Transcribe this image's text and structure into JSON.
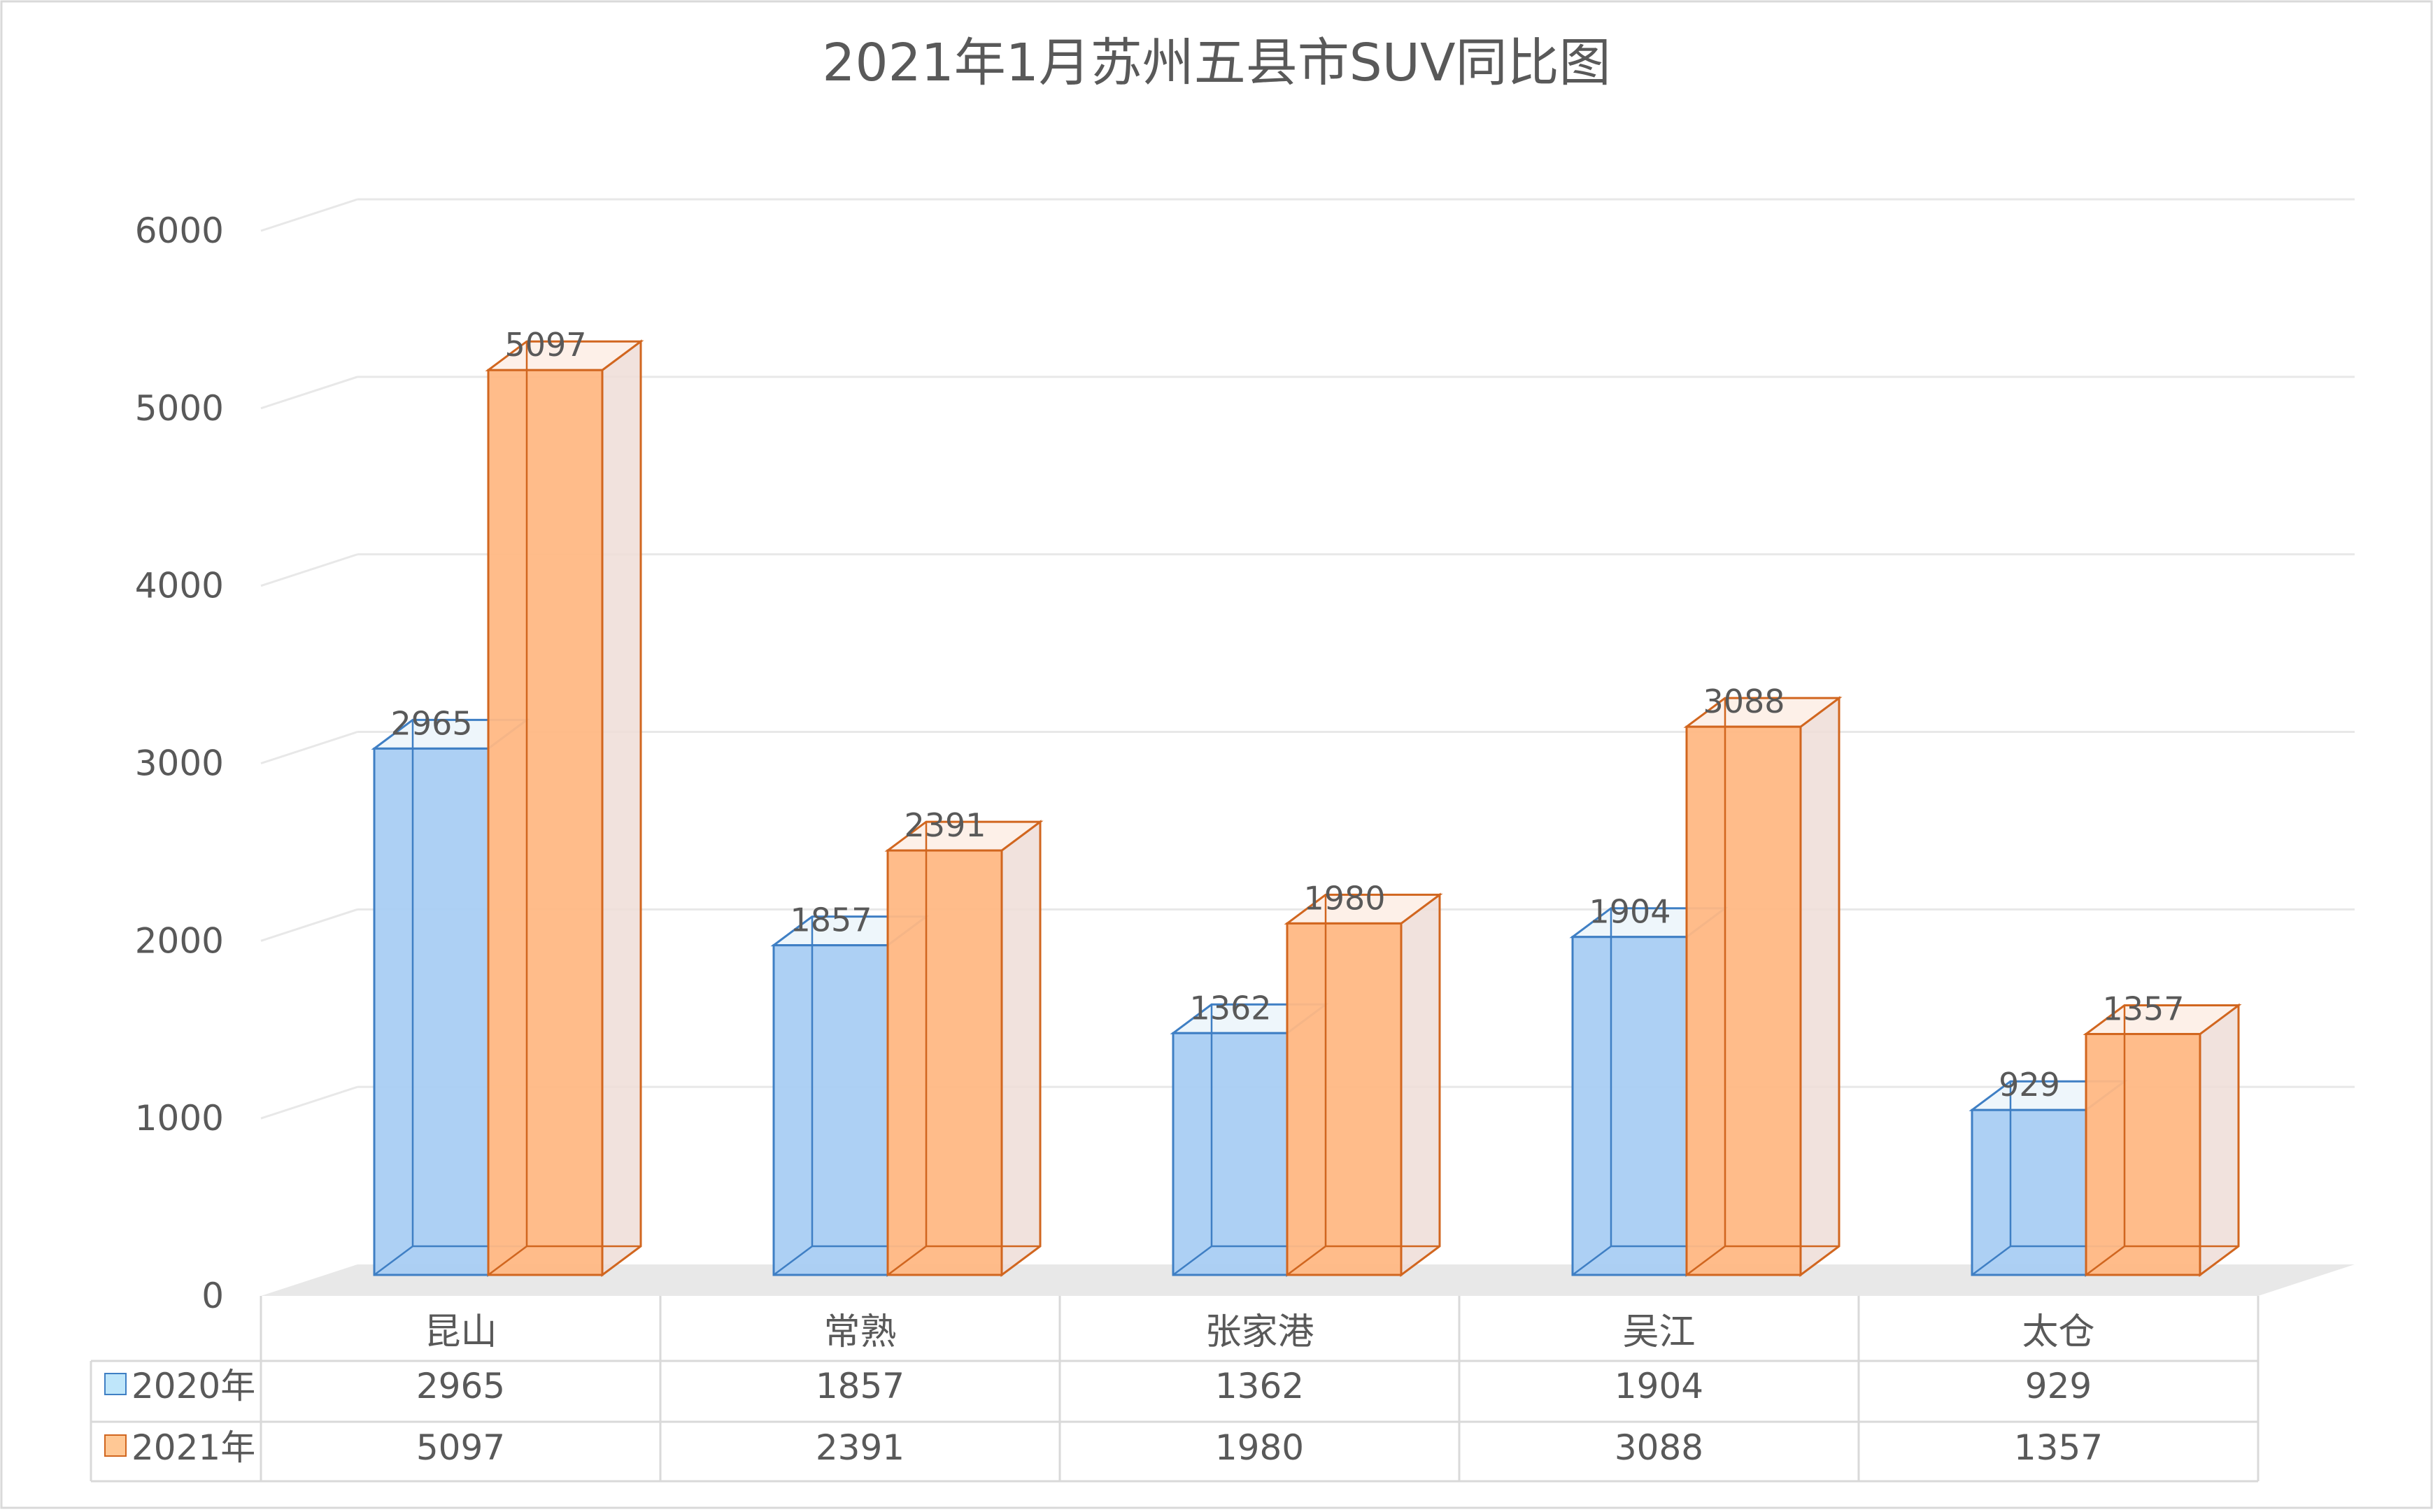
{
  "chart_data": {
    "type": "bar",
    "title": "2021年1月苏州五县市SUV同比图",
    "categories": [
      "昆山",
      "常熟",
      "张家港",
      "吴江",
      "太仓"
    ],
    "series": [
      {
        "name": "2020年",
        "values": [
          2965,
          1857,
          1362,
          1904,
          929
        ],
        "color": "#a9cdf3",
        "edge": "#3f7fc4",
        "legend_color": "#bfe6fa"
      },
      {
        "name": "2021年",
        "values": [
          5097,
          2391,
          1980,
          3088,
          1357
        ],
        "color": "#ffb884",
        "edge": "#d1661f",
        "legend_color": "#ffc895"
      }
    ],
    "y_ticks": [
      "0",
      "1000",
      "2000",
      "3000",
      "4000",
      "5000",
      "6000"
    ],
    "ylim": [
      0,
      6000
    ],
    "grid": true,
    "style": "3d-clustered-column",
    "data_table": true,
    "colors": {
      "text": "#595959",
      "title": "#595959",
      "gridline": "#e8e8e8",
      "floor": "#e8e8e8",
      "table_border": "#d9d9d9",
      "side_face": "#efddd7"
    }
  }
}
